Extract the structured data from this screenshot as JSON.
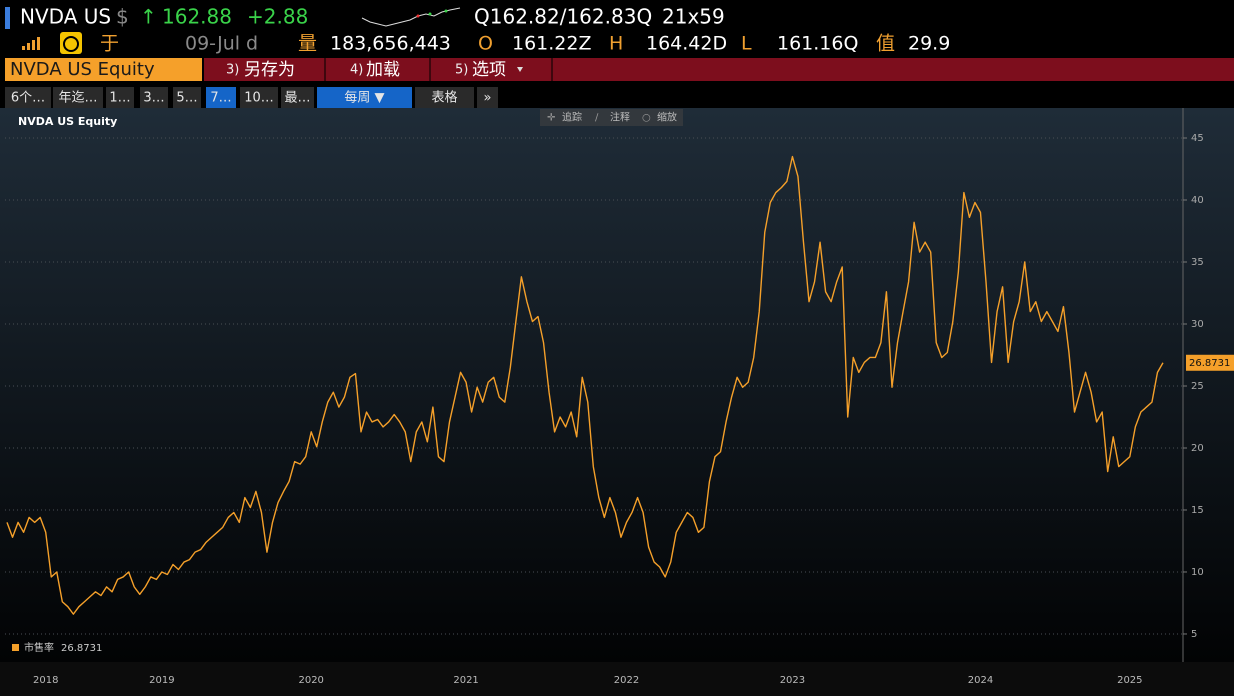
{
  "header": {
    "ticker": "NVDA US",
    "currency": "$",
    "arrow": "↑",
    "price": "162.88",
    "change": "+2.88",
    "quote": "Q162.82/162.83Q",
    "size": "21x59",
    "icon_text": "于",
    "date": "09-Jul d",
    "volume_label": "量",
    "volume": "183,656,443",
    "open_label": "O",
    "open": "161.22Z",
    "high_label": "H",
    "high": "164.42D",
    "low_label": "L",
    "low": "161.16Q",
    "value_label": "值",
    "value": "29.9"
  },
  "menu": {
    "security": "NVDA US Equity",
    "items": [
      {
        "num": "3)",
        "label": "另存为"
      },
      {
        "num": "4)",
        "label": "加载"
      },
      {
        "num": "5)",
        "label": "选项"
      }
    ]
  },
  "tabs": [
    "6个…",
    "年迄…",
    "1…",
    "3…",
    "5…",
    "7…",
    "10…",
    "最…",
    "每周 ▼",
    "表格",
    "»"
  ],
  "toolbar": [
    "追踪",
    "注释",
    "缩放"
  ],
  "chart_data": {
    "type": "line",
    "title": "NVDA US Equity",
    "categories": [
      null,
      null,
      null,
      null,
      null,
      null,
      null,
      "2018",
      null,
      null,
      null,
      null,
      null,
      null,
      null,
      null,
      null,
      null,
      null,
      null,
      null,
      null,
      null,
      null,
      null,
      null,
      null,
      null,
      "2019",
      null,
      null,
      null,
      null,
      null,
      null,
      null,
      null,
      null,
      null,
      null,
      null,
      null,
      null,
      null,
      null,
      null,
      null,
      null,
      null,
      null,
      null,
      null,
      null,
      null,
      null,
      "2020",
      null,
      null,
      null,
      null,
      null,
      null,
      null,
      null,
      null,
      null,
      null,
      null,
      null,
      null,
      null,
      null,
      null,
      null,
      null,
      null,
      null,
      null,
      null,
      null,
      null,
      null,
      null,
      "2021",
      null,
      null,
      null,
      null,
      null,
      null,
      null,
      null,
      null,
      null,
      null,
      null,
      null,
      null,
      null,
      null,
      null,
      null,
      null,
      null,
      null,
      null,
      null,
      null,
      null,
      null,
      null,
      null,
      "2022",
      null,
      null,
      null,
      null,
      null,
      null,
      null,
      null,
      null,
      null,
      null,
      null,
      null,
      null,
      null,
      null,
      null,
      null,
      null,
      null,
      null,
      null,
      null,
      null,
      null,
      null,
      null,
      null,
      null,
      "2023",
      null,
      null,
      null,
      null,
      null,
      null,
      null,
      null,
      null,
      null,
      null,
      null,
      null,
      null,
      null,
      null,
      null,
      null,
      null,
      null,
      null,
      null,
      null,
      null,
      null,
      null,
      null,
      null,
      null,
      null,
      null,
      null,
      null,
      "2024",
      null,
      null,
      null,
      null,
      null,
      null,
      null,
      null,
      null,
      null,
      null,
      null,
      null,
      null,
      null,
      null,
      null,
      null,
      null,
      null,
      null,
      null,
      null,
      null,
      null,
      null,
      "2025",
      null,
      null,
      null,
      null,
      null,
      null
    ],
    "series": [
      {
        "name": "市售率",
        "color": "#f5a02a",
        "values": [
          14.0,
          12.8,
          14.0,
          13.2,
          14.4,
          14.0,
          14.4,
          13.2,
          9.6,
          10.0,
          7.6,
          7.2,
          6.6,
          7.2,
          7.6,
          8.0,
          8.4,
          8.1,
          8.8,
          8.4,
          9.4,
          9.6,
          10.0,
          8.8,
          8.2,
          8.8,
          9.6,
          9.4,
          10.0,
          9.8,
          10.6,
          10.2,
          10.8,
          11.0,
          11.6,
          11.8,
          12.4,
          12.8,
          13.2,
          13.6,
          14.4,
          14.8,
          14.0,
          16.0,
          15.2,
          16.5,
          14.8,
          11.6,
          14.0,
          15.6,
          16.5,
          17.3,
          18.9,
          18.7,
          19.3,
          21.3,
          20.1,
          22.1,
          23.7,
          24.5,
          23.3,
          24.1,
          25.7,
          26.0,
          21.3,
          22.9,
          22.1,
          22.3,
          21.7,
          22.1,
          22.7,
          22.1,
          21.3,
          18.9,
          21.3,
          22.1,
          20.5,
          23.3,
          19.3,
          18.9,
          22.1,
          24.1,
          26.1,
          25.3,
          22.9,
          24.9,
          23.7,
          25.3,
          25.7,
          24.1,
          23.7,
          26.5,
          30.2,
          33.8,
          31.8,
          30.2,
          30.6,
          28.5,
          24.5,
          21.3,
          22.5,
          21.7,
          22.9,
          20.9,
          25.7,
          23.7,
          18.5,
          16.0,
          14.4,
          16.0,
          14.8,
          12.8,
          14.0,
          14.8,
          16.0,
          14.8,
          12.0,
          10.8,
          10.4,
          9.6,
          10.8,
          13.2,
          14.0,
          14.8,
          14.4,
          13.2,
          13.6,
          17.3,
          19.3,
          19.7,
          22.1,
          24.1,
          25.7,
          24.9,
          25.3,
          27.3,
          31.0,
          37.4,
          39.8,
          40.6,
          41.0,
          41.5,
          43.5,
          41.9,
          36.6,
          31.8,
          33.4,
          36.6,
          32.6,
          31.8,
          33.4,
          34.6,
          22.5,
          27.3,
          26.1,
          26.9,
          27.3,
          27.3,
          28.5,
          32.6,
          24.9,
          28.5,
          31.0,
          33.4,
          38.2,
          35.8,
          36.6,
          35.8,
          28.5,
          27.3,
          27.7,
          30.2,
          34.2,
          40.6,
          38.6,
          39.8,
          39.0,
          33.4,
          26.9,
          31.0,
          33.0,
          26.9,
          30.2,
          31.8,
          35.0,
          31.0,
          31.8,
          30.2,
          31.0,
          30.2,
          29.4,
          31.4,
          27.7,
          22.9,
          24.5,
          26.1,
          24.5,
          22.1,
          22.9,
          18.1,
          20.9,
          18.5,
          18.9,
          19.3,
          21.7,
          22.9,
          23.3,
          23.7,
          26.1,
          26.8731
        ]
      }
    ],
    "ylim": [
      2.74,
      47.42
    ],
    "yticks": [
      5,
      10,
      15,
      20,
      25,
      30,
      35,
      40,
      45
    ],
    "grid": true,
    "axis_side": "right"
  }
}
